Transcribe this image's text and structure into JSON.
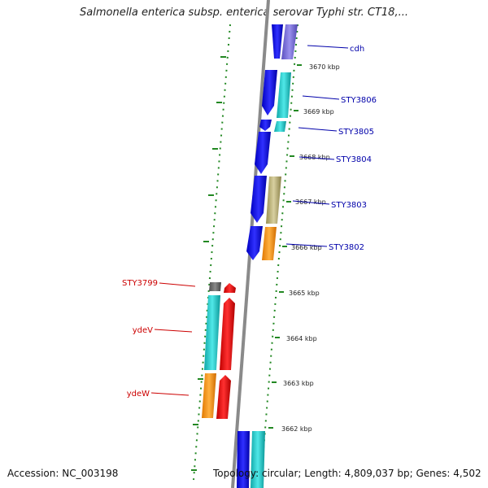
{
  "title": "Salmonella enterica subsp. enterica serovar Typhi str. CT18,...",
  "accession": "Accession: NC_003198",
  "topology": "Topology: circular; Length: 4,809,037 bp; Genes: 4,502",
  "scale": {
    "unit": "kbp",
    "ticks": [
      "3670 kbp",
      "3669 kbp",
      "3668 kbp",
      "3667 kbp",
      "3666 kbp",
      "3665 kbp",
      "3664 kbp",
      "3663 kbp",
      "3662 kbp"
    ]
  },
  "genes_forward": [
    "cdh",
    "STY3806",
    "STY3805",
    "STY3804",
    "STY3803",
    "STY3802"
  ],
  "genes_reverse": [
    "STY3799",
    "ydeV",
    "ydeW"
  ],
  "colors": {
    "blue": "#1010e8",
    "slate": "#7a6fd6",
    "cyan": "#22cccc",
    "olive": "#bdb37a",
    "orange": "#ff9a10",
    "red": "#ee1111",
    "gray": "#6b6b6b",
    "backbone": "#8a8a8a",
    "dots": "#228822",
    "blue_label": "#0000aa",
    "red_label": "#cc0000"
  }
}
